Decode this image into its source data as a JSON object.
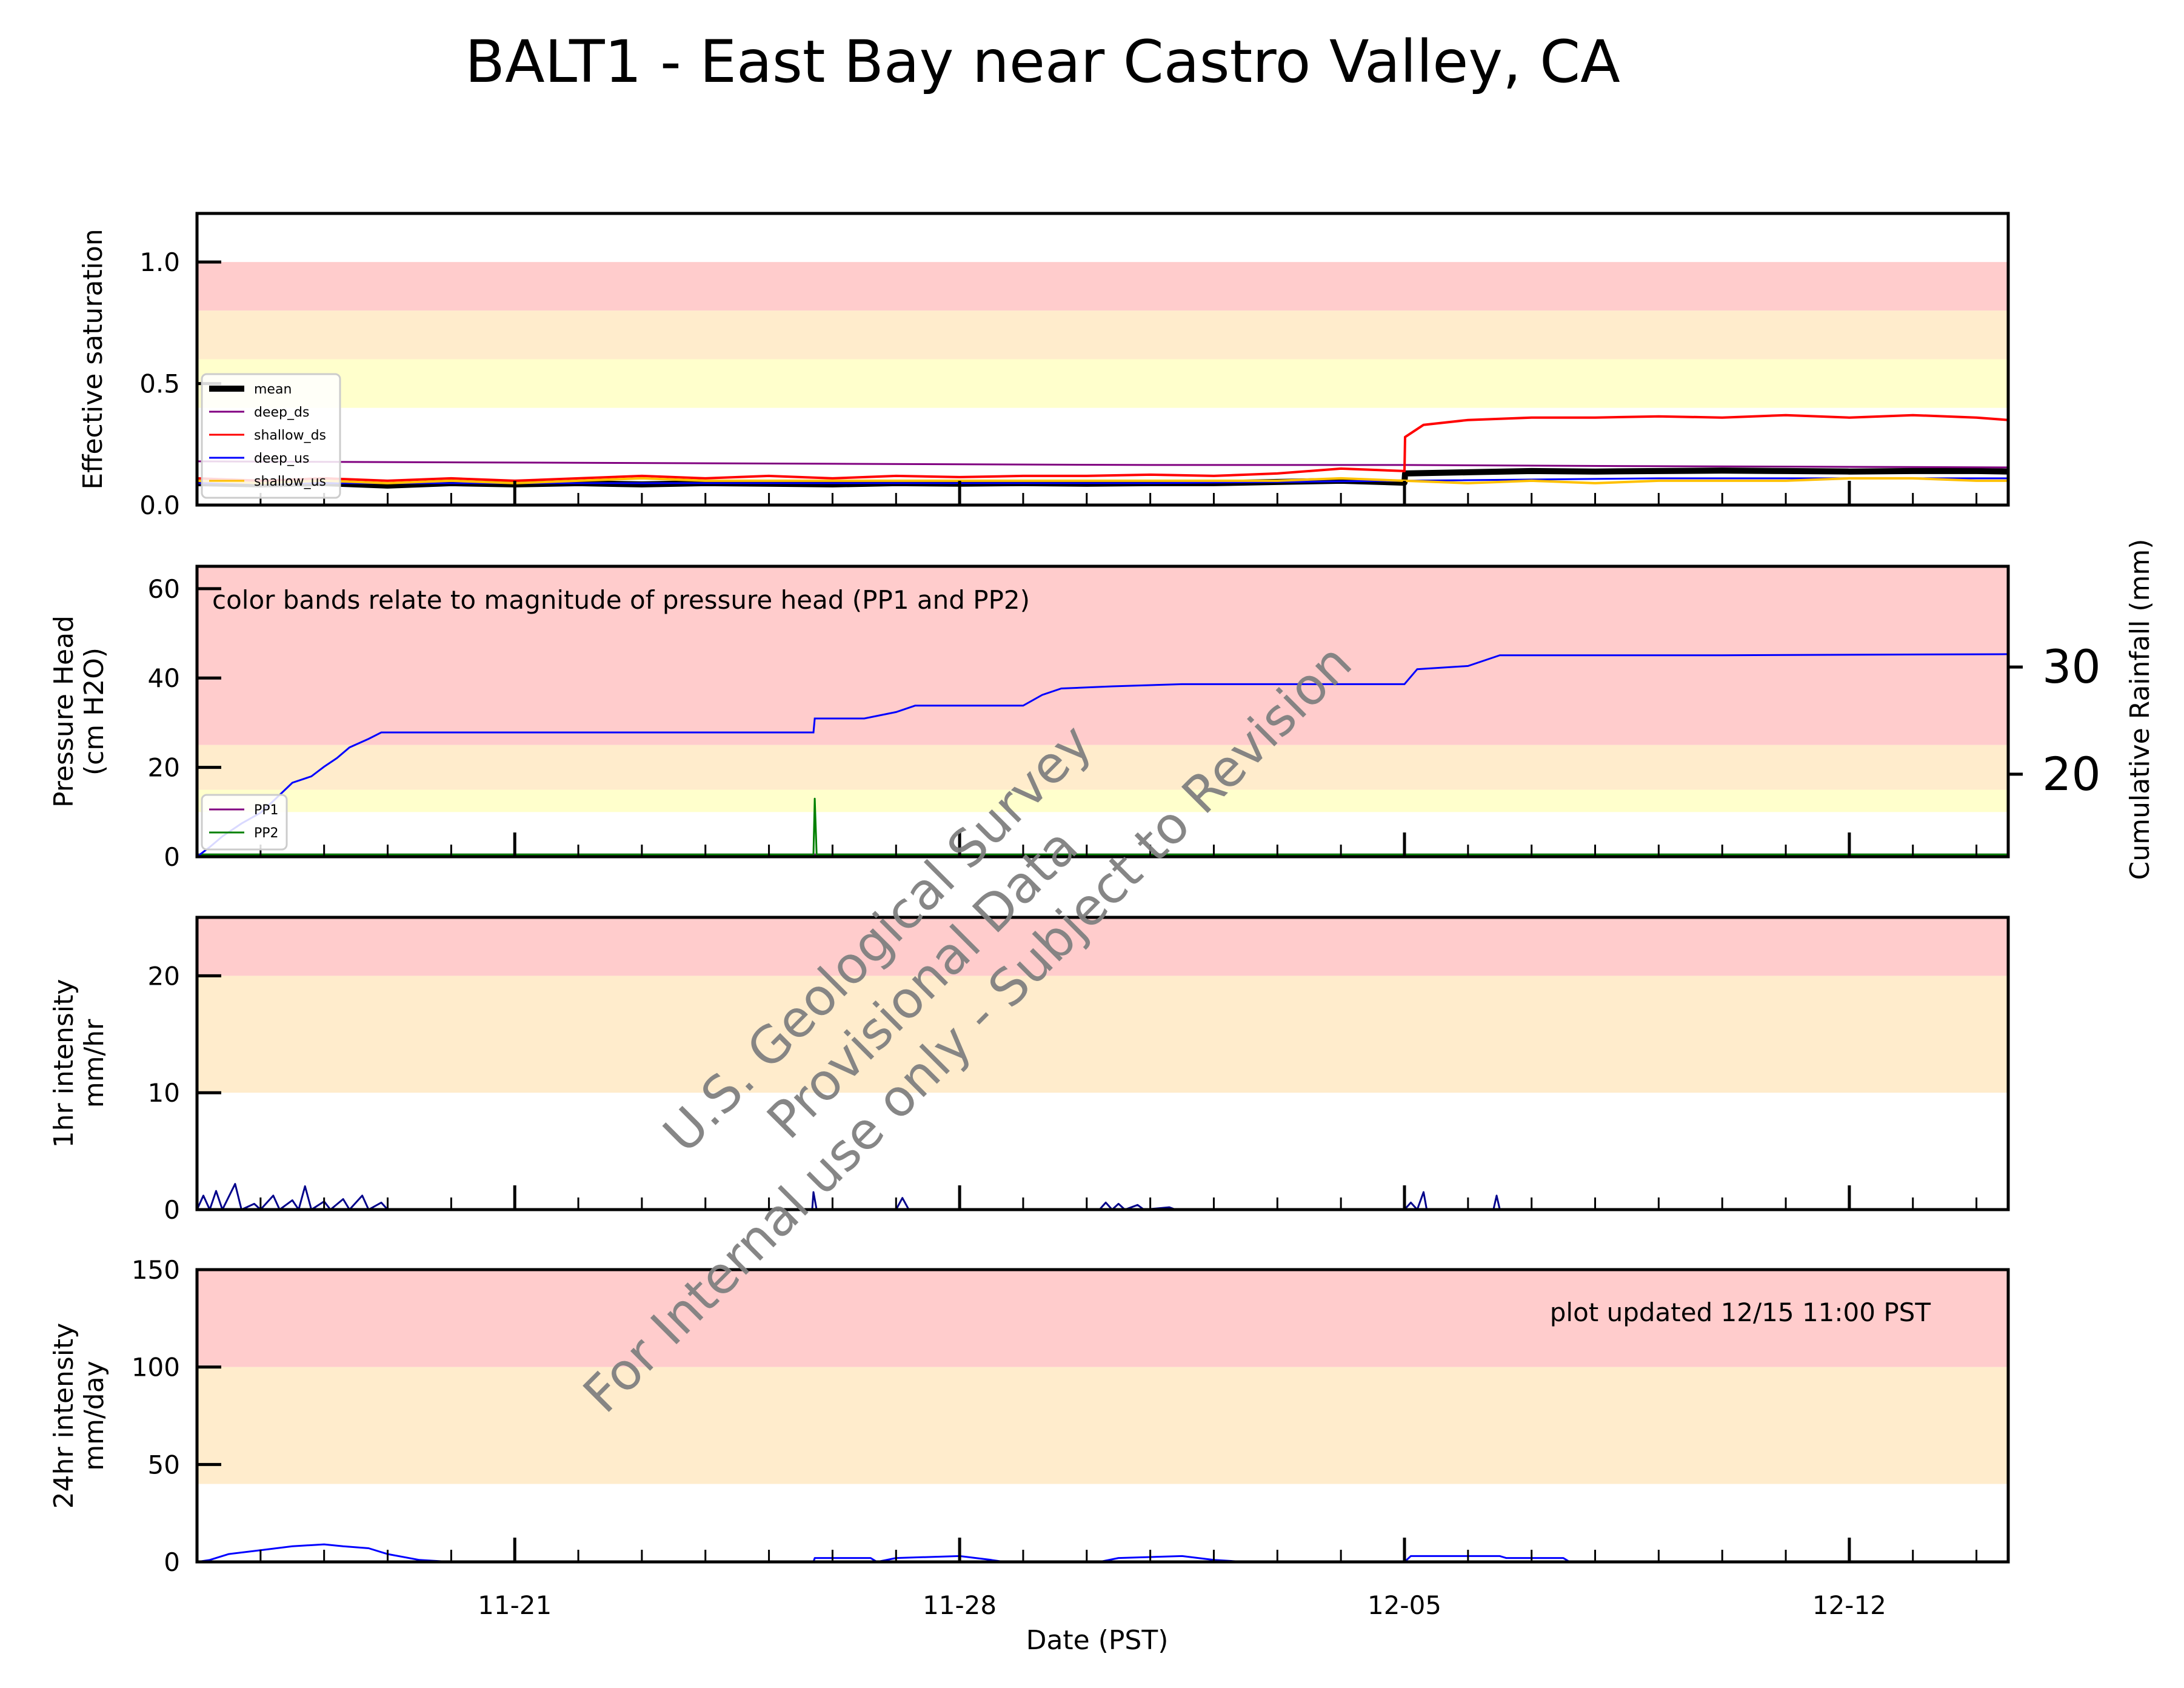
{
  "figure": {
    "title": "BALT1 - East Bay near Castro Valley, CA",
    "xlabel": "Date (PST)",
    "watermark_lines": [
      "U.S. Geological Survey",
      "Provisional Data",
      "For Internal use only - Subject to Revision"
    ]
  },
  "chart_data": [
    {
      "type": "line",
      "panel": "saturation",
      "ylabel": "Effective saturation",
      "ylim": [
        0,
        1.2
      ],
      "yticks": [
        0,
        0.5,
        1.0
      ],
      "ytick_labels": [
        "0.0",
        "0.5",
        "1.0"
      ],
      "bands": [
        {
          "from": 0.8,
          "to": 1.0,
          "color": "#ffcccc"
        },
        {
          "from": 0.6,
          "to": 0.8,
          "color": "#ffeccc"
        },
        {
          "from": 0.4,
          "to": 0.6,
          "color": "#ffffcc"
        }
      ],
      "legend": {
        "placement": "lower-left"
      },
      "series": [
        {
          "name": "mean",
          "color": "#000000",
          "points": [
            [
              -5,
              0.09
            ],
            [
              -4,
              0.085
            ],
            [
              -3,
              0.09
            ],
            [
              -2,
              0.08
            ],
            [
              -1,
              0.09
            ],
            [
              0,
              0.085
            ],
            [
              1,
              0.09
            ],
            [
              2,
              0.085
            ],
            [
              3,
              0.09
            ],
            [
              4,
              0.088
            ],
            [
              5,
              0.085
            ],
            [
              6,
              0.09
            ],
            [
              7,
              0.088
            ],
            [
              8,
              0.09
            ],
            [
              9,
              0.088
            ],
            [
              10,
              0.09
            ],
            [
              11,
              0.09
            ],
            [
              12,
              0.095
            ],
            [
              13,
              0.1
            ],
            [
              14,
              0.092
            ],
            [
              14.01,
              0.13
            ],
            [
              15,
              0.135
            ],
            [
              16,
              0.14
            ],
            [
              17,
              0.138
            ],
            [
              18,
              0.14
            ],
            [
              19,
              0.142
            ],
            [
              20,
              0.14
            ],
            [
              21,
              0.138
            ],
            [
              22,
              0.14
            ],
            [
              23,
              0.14
            ],
            [
              23.5,
              0.138
            ]
          ]
        },
        {
          "name": "deep_ds",
          "color": "#800080",
          "points": [
            [
              -5,
              0.18
            ],
            [
              0,
              0.175
            ],
            [
              5,
              0.17
            ],
            [
              10,
              0.165
            ],
            [
              14,
              0.165
            ],
            [
              18,
              0.16
            ],
            [
              23.5,
              0.155
            ]
          ]
        },
        {
          "name": "shallow_ds",
          "color": "#ff0000",
          "points": [
            [
              -5,
              0.11
            ],
            [
              -4,
              0.1
            ],
            [
              -3,
              0.11
            ],
            [
              -2,
              0.1
            ],
            [
              -1,
              0.11
            ],
            [
              0,
              0.1
            ],
            [
              1,
              0.11
            ],
            [
              2,
              0.12
            ],
            [
              3,
              0.11
            ],
            [
              4,
              0.12
            ],
            [
              5,
              0.11
            ],
            [
              6,
              0.12
            ],
            [
              7,
              0.115
            ],
            [
              8,
              0.12
            ],
            [
              9,
              0.12
            ],
            [
              10,
              0.125
            ],
            [
              11,
              0.12
            ],
            [
              12,
              0.13
            ],
            [
              13,
              0.15
            ],
            [
              14,
              0.14
            ],
            [
              14.01,
              0.28
            ],
            [
              14.3,
              0.33
            ],
            [
              15,
              0.35
            ],
            [
              16,
              0.36
            ],
            [
              17,
              0.36
            ],
            [
              18,
              0.365
            ],
            [
              19,
              0.36
            ],
            [
              20,
              0.37
            ],
            [
              21,
              0.36
            ],
            [
              22,
              0.37
            ],
            [
              23,
              0.36
            ],
            [
              23.5,
              0.35
            ]
          ]
        },
        {
          "name": "deep_us",
          "color": "#0000ff",
          "points": [
            [
              -5,
              0.09
            ],
            [
              0,
              0.09
            ],
            [
              5,
              0.09
            ],
            [
              10,
              0.09
            ],
            [
              14,
              0.1
            ],
            [
              18,
              0.11
            ],
            [
              23.5,
              0.11
            ]
          ]
        },
        {
          "name": "shallow_us",
          "color": "#ffc000",
          "points": [
            [
              -5,
              0.1
            ],
            [
              -4,
              0.09
            ],
            [
              -3,
              0.1
            ],
            [
              -2,
              0.09
            ],
            [
              -1,
              0.1
            ],
            [
              0,
              0.09
            ],
            [
              1,
              0.1
            ],
            [
              2,
              0.11
            ],
            [
              3,
              0.1
            ],
            [
              4,
              0.1
            ],
            [
              5,
              0.1
            ],
            [
              6,
              0.1
            ],
            [
              7,
              0.1
            ],
            [
              8,
              0.1
            ],
            [
              9,
              0.1
            ],
            [
              10,
              0.1
            ],
            [
              11,
              0.1
            ],
            [
              12,
              0.1
            ],
            [
              13,
              0.11
            ],
            [
              14,
              0.1
            ],
            [
              15,
              0.09
            ],
            [
              16,
              0.1
            ],
            [
              17,
              0.09
            ],
            [
              18,
              0.1
            ],
            [
              19,
              0.1
            ],
            [
              20,
              0.1
            ],
            [
              21,
              0.11
            ],
            [
              22,
              0.11
            ],
            [
              23,
              0.1
            ],
            [
              23.5,
              0.1
            ]
          ]
        }
      ]
    },
    {
      "type": "line",
      "panel": "pressure",
      "ylabel_lines": [
        "Pressure Head",
        "(cm H2O)"
      ],
      "y2label": "Cumulative Rainfall (mm)",
      "ylim": [
        0,
        65
      ],
      "yticks": [
        0,
        20,
        40,
        60
      ],
      "y2lim": [
        12.3,
        39.4
      ],
      "y2ticks": [
        20,
        30
      ],
      "annotation": "color bands relate to magnitude of pressure head (PP1 and PP2)",
      "bands": [
        {
          "from": 25,
          "to": 65,
          "color": "#ffcccc"
        },
        {
          "from": 15,
          "to": 25,
          "color": "#ffeccc"
        },
        {
          "from": 10,
          "to": 15,
          "color": "#ffffcc"
        }
      ],
      "legend": {
        "placement": "lower-left"
      },
      "series": [
        {
          "name": "PP1",
          "color": "#800080",
          "points": [
            [
              -5,
              0.5
            ],
            [
              23.5,
              0.5
            ]
          ]
        },
        {
          "name": "PP2",
          "color": "#008000",
          "points": [
            [
              -5,
              0.5
            ],
            [
              4.7,
              0.5
            ],
            [
              4.72,
              13
            ],
            [
              4.75,
              0.5
            ],
            [
              23.5,
              0.5
            ]
          ]
        }
      ],
      "cumulative_rainfall": {
        "color": "#0000ff",
        "points": [
          [
            -5,
            12.3
          ],
          [
            -4.8,
            13.2
          ],
          [
            -4.6,
            14.2
          ],
          [
            -4.3,
            15.4
          ],
          [
            -4.0,
            16.4
          ],
          [
            -3.8,
            17.5
          ],
          [
            -3.5,
            19.2
          ],
          [
            -3.2,
            19.8
          ],
          [
            -3.0,
            20.7
          ],
          [
            -2.8,
            21.5
          ],
          [
            -2.6,
            22.5
          ],
          [
            -2.3,
            23.3
          ],
          [
            -2.1,
            23.9
          ],
          [
            4.7,
            23.9
          ],
          [
            4.72,
            25.2
          ],
          [
            5.5,
            25.2
          ],
          [
            6.0,
            25.8
          ],
          [
            6.3,
            26.4
          ],
          [
            8.0,
            26.4
          ],
          [
            8.3,
            27.4
          ],
          [
            8.6,
            28.0
          ],
          [
            9.4,
            28.2
          ],
          [
            10.5,
            28.4
          ],
          [
            14.0,
            28.4
          ],
          [
            14.2,
            29.8
          ],
          [
            15.0,
            30.1
          ],
          [
            15.5,
            31.1
          ],
          [
            19.0,
            31.1
          ],
          [
            23.5,
            31.2
          ]
        ]
      }
    },
    {
      "type": "line",
      "panel": "1hr",
      "ylabel_lines": [
        "1hr intensity",
        "mm/hr"
      ],
      "ylim": [
        0,
        25
      ],
      "yticks": [
        0,
        10,
        20
      ],
      "bands": [
        {
          "from": 20,
          "to": 25,
          "color": "#ffcccc"
        },
        {
          "from": 10,
          "to": 20,
          "color": "#ffeccc"
        }
      ],
      "series": [
        {
          "name": "1hr",
          "color": "#00008b",
          "points": [
            [
              -5,
              0
            ],
            [
              -4.9,
              1.2
            ],
            [
              -4.8,
              0
            ],
            [
              -4.7,
              1.6
            ],
            [
              -4.6,
              0
            ],
            [
              -4.4,
              2.2
            ],
            [
              -4.3,
              0
            ],
            [
              -4.1,
              0.5
            ],
            [
              -4.0,
              0
            ],
            [
              -3.8,
              1.2
            ],
            [
              -3.7,
              0
            ],
            [
              -3.5,
              0.8
            ],
            [
              -3.4,
              0
            ],
            [
              -3.3,
              2.0
            ],
            [
              -3.2,
              0
            ],
            [
              -3.0,
              0.7
            ],
            [
              -2.9,
              0
            ],
            [
              -2.7,
              0.9
            ],
            [
              -2.6,
              0
            ],
            [
              -2.4,
              1.2
            ],
            [
              -2.3,
              0
            ],
            [
              -2.1,
              0.6
            ],
            [
              -2.0,
              0
            ],
            [
              4.68,
              0
            ],
            [
              4.7,
              1.5
            ],
            [
              4.75,
              0
            ],
            [
              6.0,
              0
            ],
            [
              6.1,
              1.0
            ],
            [
              6.2,
              0
            ],
            [
              9.2,
              0
            ],
            [
              9.3,
              0.6
            ],
            [
              9.4,
              0
            ],
            [
              9.5,
              0.5
            ],
            [
              9.6,
              0
            ],
            [
              9.8,
              0.4
            ],
            [
              9.9,
              0
            ],
            [
              10.3,
              0.2
            ],
            [
              10.4,
              0
            ],
            [
              14.0,
              0
            ],
            [
              14.1,
              0.6
            ],
            [
              14.2,
              0
            ],
            [
              14.3,
              1.5
            ],
            [
              14.35,
              0
            ],
            [
              15.4,
              0
            ],
            [
              15.45,
              1.2
            ],
            [
              15.5,
              0
            ],
            [
              23.5,
              0
            ]
          ]
        }
      ]
    },
    {
      "type": "area",
      "panel": "24hr",
      "ylabel_lines": [
        "24hr intensity",
        "mm/day"
      ],
      "ylim": [
        0,
        150
      ],
      "yticks": [
        0,
        50,
        100,
        150
      ],
      "annotation": "plot updated 12/15 11:00  PST",
      "bands": [
        {
          "from": 100,
          "to": 150,
          "color": "#ffcccc"
        },
        {
          "from": 40,
          "to": 100,
          "color": "#ffeccc"
        }
      ],
      "series": [
        {
          "name": "24hr",
          "color": "#0000ff",
          "points": [
            [
              -5,
              0
            ],
            [
              -4.8,
              1
            ],
            [
              -4.5,
              4
            ],
            [
              -4.0,
              6
            ],
            [
              -3.5,
              8
            ],
            [
              -3.0,
              9
            ],
            [
              -2.7,
              8
            ],
            [
              -2.3,
              7
            ],
            [
              -2.0,
              4
            ],
            [
              -1.5,
              1
            ],
            [
              -1.0,
              0
            ],
            [
              4.7,
              0
            ],
            [
              4.72,
              2
            ],
            [
              5.6,
              2
            ],
            [
              5.7,
              0
            ],
            [
              6.0,
              2
            ],
            [
              7.0,
              3
            ],
            [
              7.5,
              1
            ],
            [
              7.7,
              0
            ],
            [
              9.2,
              0
            ],
            [
              9.5,
              2
            ],
            [
              10.5,
              3
            ],
            [
              11.0,
              1
            ],
            [
              11.5,
              0
            ],
            [
              14.0,
              0
            ],
            [
              14.1,
              3
            ],
            [
              15.5,
              3
            ],
            [
              15.6,
              2
            ],
            [
              16.5,
              2
            ],
            [
              16.6,
              0
            ],
            [
              23.5,
              0
            ]
          ]
        }
      ]
    }
  ],
  "x_axis": {
    "xlim": [
      -5,
      23.5
    ],
    "ticks": [
      0,
      7,
      14,
      21
    ],
    "tick_labels": [
      "11-21",
      "11-28",
      "12-05",
      "12-12"
    ]
  }
}
